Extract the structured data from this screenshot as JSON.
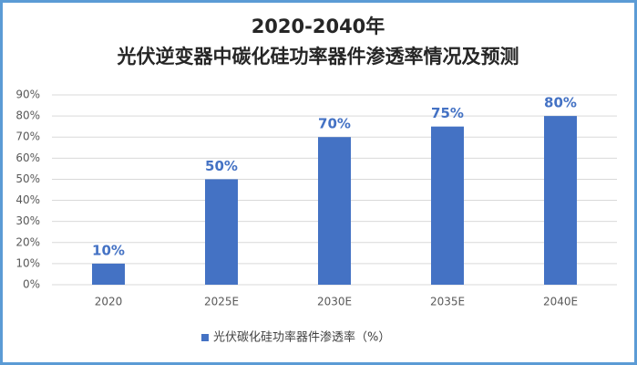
{
  "chart_data": {
    "type": "bar",
    "title": [
      "2020-2040年",
      "光伏逆变器中碳化硅功率器件渗透率情况及预测"
    ],
    "categories": [
      "2020",
      "2025E",
      "2030E",
      "2035E",
      "2040E"
    ],
    "series": [
      {
        "name": "光伏碳化硅功率器件渗透率（%）",
        "color": "#4472c4",
        "values": [
          10,
          50,
          70,
          75,
          80
        ],
        "value_labels": [
          "10%",
          "50%",
          "70%",
          "75%",
          "80%"
        ]
      }
    ],
    "ylim": [
      0,
      90
    ],
    "yticks": [
      {
        "value": 0,
        "label": "0%"
      },
      {
        "value": 10,
        "label": "10%"
      },
      {
        "value": 20,
        "label": "20%"
      },
      {
        "value": 30,
        "label": "30%"
      },
      {
        "value": 40,
        "label": "40%"
      },
      {
        "value": 50,
        "label": "50%"
      },
      {
        "value": 60,
        "label": "60%"
      },
      {
        "value": 70,
        "label": "70%"
      },
      {
        "value": 80,
        "label": "80%"
      },
      {
        "value": 90,
        "label": "90%"
      }
    ],
    "grid": true,
    "legend": "bottom"
  }
}
